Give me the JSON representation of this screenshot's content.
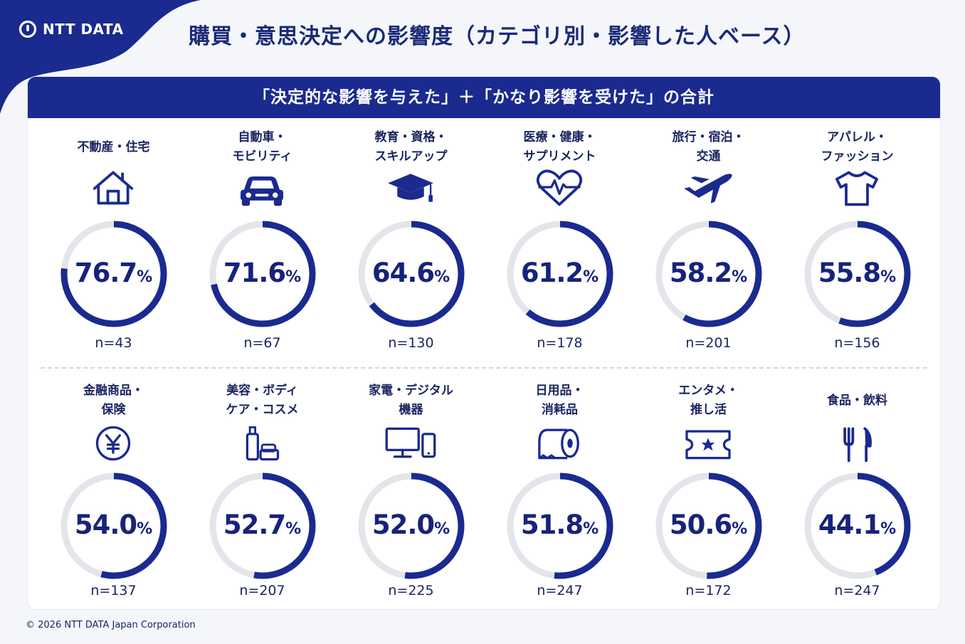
{
  "brand": {
    "logo_text": "NTT DATA",
    "colors": {
      "primary": "#1a2a8f",
      "ring_track": "#e3e5ea",
      "ring_fill": "#1a2a8f"
    }
  },
  "title": "購買・意思決定への影響度（カテゴリ別・影響した人ベース）",
  "banner": "「決定的な影響を与えた」＋「かなり影響を受けた」の合計",
  "chart_data": {
    "type": "donut-grid",
    "unit": "%",
    "categories": [
      {
        "label": "不動産・住宅",
        "icon": "house-icon",
        "value": 76.7,
        "value_text": "76.7",
        "n": "n=43"
      },
      {
        "label": "自動車・\nモビリティ",
        "icon": "car-icon",
        "value": 71.6,
        "value_text": "71.6",
        "n": "n=67"
      },
      {
        "label": "教育・資格・\nスキルアップ",
        "icon": "graduation-cap-icon",
        "value": 64.6,
        "value_text": "64.6",
        "n": "n=130"
      },
      {
        "label": "医療・健康・\nサプリメント",
        "icon": "heart-pulse-icon",
        "value": 61.2,
        "value_text": "61.2",
        "n": "n=178"
      },
      {
        "label": "旅行・宿泊・\n交通",
        "icon": "airplane-icon",
        "value": 58.2,
        "value_text": "58.2",
        "n": "n=201"
      },
      {
        "label": "アパレル・\nファッション",
        "icon": "tshirt-icon",
        "value": 55.8,
        "value_text": "55.8",
        "n": "n=156"
      },
      {
        "label": "金融商品・\n保険",
        "icon": "yen-coin-icon",
        "value": 54.0,
        "value_text": "54.0",
        "n": "n=137"
      },
      {
        "label": "美容・ボディ\nケア・コスメ",
        "icon": "cosmetics-icon",
        "value": 52.7,
        "value_text": "52.7",
        "n": "n=207"
      },
      {
        "label": "家電・デジタル\n機器",
        "icon": "monitor-phone-icon",
        "value": 52.0,
        "value_text": "52.0",
        "n": "n=225"
      },
      {
        "label": "日用品・\n消耗品",
        "icon": "toilet-paper-icon",
        "value": 51.8,
        "value_text": "51.8",
        "n": "n=247"
      },
      {
        "label": "エンタメ・\n推し活",
        "icon": "ticket-star-icon",
        "value": 50.6,
        "value_text": "50.6",
        "n": "n=172"
      },
      {
        "label": "食品・飲料",
        "icon": "fork-knife-icon",
        "value": 44.1,
        "value_text": "44.1",
        "n": "n=247"
      }
    ]
  },
  "footer": "© 2026 NTT DATA Japan Corporation"
}
